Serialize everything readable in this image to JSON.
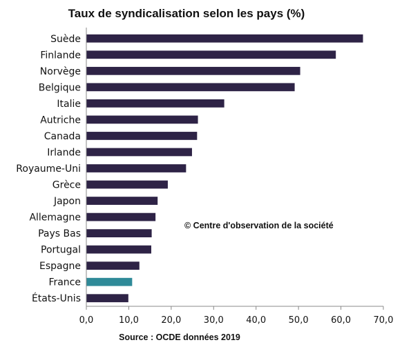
{
  "chart_data": {
    "type": "bar",
    "orientation": "horizontal",
    "title": "Taux de syndicalisation selon les pays (%)",
    "categories": [
      "Suède",
      "Finlande",
      "Norvège",
      "Belgique",
      "Italie",
      "Autriche",
      "Canada",
      "Irlande",
      "Royaume-Uni",
      "Grèce",
      "Japon",
      "Allemagne",
      "Pays Bas",
      "Portugal",
      "Espagne",
      "France",
      "États-Unis"
    ],
    "values": [
      65.2,
      58.8,
      50.4,
      49.1,
      32.5,
      26.3,
      26.1,
      24.9,
      23.5,
      19.2,
      16.8,
      16.3,
      15.4,
      15.3,
      12.5,
      10.8,
      9.9
    ],
    "highlight": "France",
    "xlim": [
      0,
      70
    ],
    "xticks": [
      "0,0",
      "10,0",
      "20,0",
      "30,0",
      "40,0",
      "50,0",
      "60,0",
      "70,0"
    ],
    "grid": false,
    "colors": {
      "bar": "#2e2346",
      "highlight": "#2f8a98"
    },
    "annotation": "© Centre d'observation de la société",
    "source": "Source : OCDE données 2019"
  }
}
